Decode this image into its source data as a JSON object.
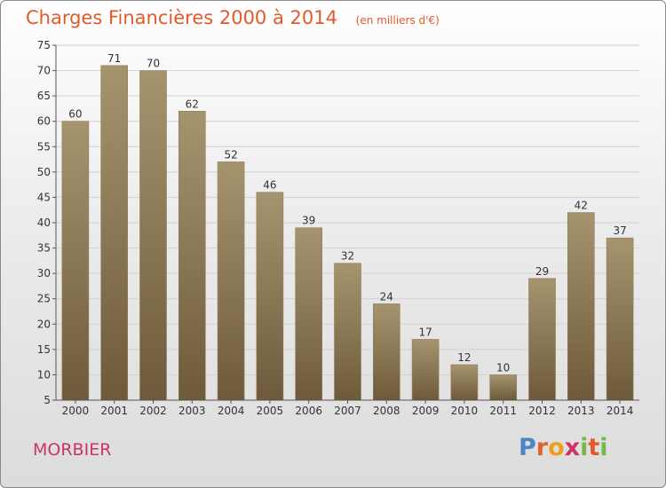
{
  "header": {
    "title": "Charges Financières 2000 à 2014",
    "unit": "(en milliers d'€)"
  },
  "footer": {
    "commune": "MORBIER",
    "logo": [
      "P",
      "r",
      "o",
      "x",
      "i",
      "t",
      "i"
    ]
  },
  "colors": {
    "title": "#e05a2a",
    "commune": "#cc3367",
    "bar_top": "#a6946f",
    "bar_bottom": "#6e5a3a"
  },
  "chart_data": {
    "type": "bar",
    "categories": [
      "2000",
      "2001",
      "2002",
      "2003",
      "2004",
      "2005",
      "2006",
      "2007",
      "2008",
      "2009",
      "2010",
      "2011",
      "2012",
      "2013",
      "2014"
    ],
    "values": [
      60,
      71,
      70,
      62,
      52,
      46,
      39,
      32,
      24,
      17,
      12,
      10,
      29,
      42,
      37
    ],
    "ylim": [
      5,
      75
    ],
    "yticks": [
      5,
      10,
      15,
      20,
      25,
      30,
      35,
      40,
      45,
      50,
      55,
      60,
      65,
      70,
      75
    ],
    "grid": true,
    "legend": "none"
  }
}
